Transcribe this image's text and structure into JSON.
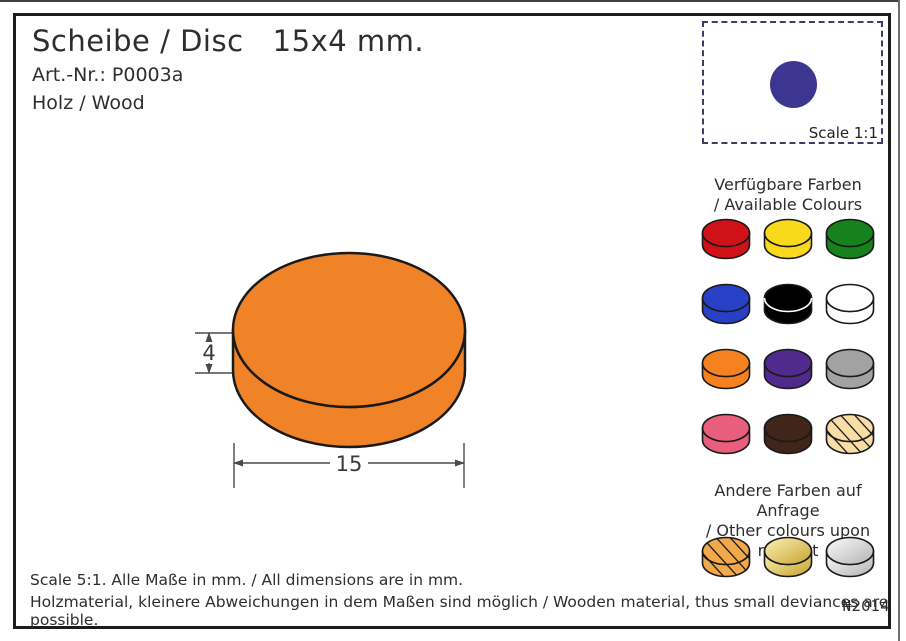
{
  "header": {
    "title": "Scheibe / Disc   15x4 mm.",
    "art_nr": "Art.-Nr.: P0003a",
    "material": "Holz / Wood"
  },
  "scale_box": {
    "label": "Scale 1:1",
    "disc_color": "#3c3691"
  },
  "drawing": {
    "height_dim": "4",
    "width_dim": "15",
    "disc_color": "#f08228",
    "outline_color": "#1a1a1a"
  },
  "available": {
    "title_de": "Verfügbare Farben",
    "title_en": "/ Available Colours",
    "colors": [
      {
        "name": "red",
        "fill": "#d01117"
      },
      {
        "name": "yellow",
        "fill": "#f8d91c"
      },
      {
        "name": "green",
        "fill": "#17811c"
      },
      {
        "name": "blue",
        "fill": "#2840c6"
      },
      {
        "name": "black",
        "fill": "#000000",
        "seam": "#ffffff"
      },
      {
        "name": "white",
        "fill": "#ffffff"
      },
      {
        "name": "orange",
        "fill": "#f5821f"
      },
      {
        "name": "purple",
        "fill": "#502a8c"
      },
      {
        "name": "grey",
        "fill": "#a2a2a2"
      },
      {
        "name": "pink",
        "fill": "#e95e7d"
      },
      {
        "name": "dark-brown",
        "fill": "#40251a"
      },
      {
        "name": "natural-wood",
        "fill": "#f8dda7",
        "texture": "wood"
      }
    ]
  },
  "on_request": {
    "title_de": "Andere Farben auf Anfrage",
    "title_en": "/ Other colours upon request",
    "colors": [
      {
        "name": "stained-wood",
        "fill": "#f1a94b",
        "texture": "wood"
      },
      {
        "name": "gold",
        "gradient": [
          "#fcf3b8",
          "#c7a22e"
        ]
      },
      {
        "name": "silver",
        "gradient": [
          "#fbfbfb",
          "#b3b3b3"
        ]
      }
    ]
  },
  "footer": {
    "line1": "Scale 5:1. Alle Maße in mm. / All dimensions are in mm.",
    "line2": "Holzmaterial, kleinere Abweichungen in dem Maßen sind möglich / Wooden material, thus small deviances are possible.",
    "mark": "₦2014"
  }
}
